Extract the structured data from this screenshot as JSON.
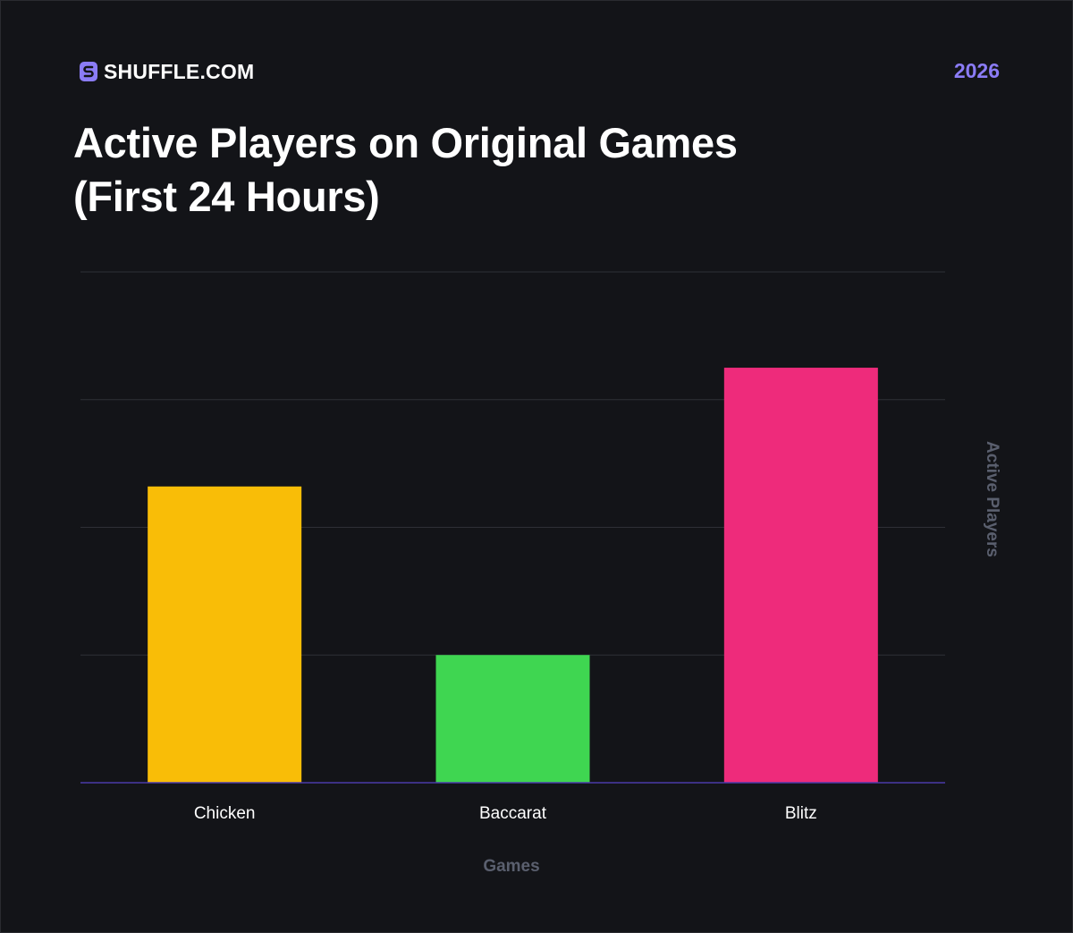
{
  "header": {
    "brand_name": "SHUFFLE.COM",
    "brand_icon": "shuffle-s-logo-icon",
    "year": "2026",
    "title_line1": "Active Players on Original Games",
    "title_line2": "(First 24 Hours)"
  },
  "colors": {
    "background": "#131418",
    "accent": "#8b7cf6",
    "grid": "#2e3036",
    "baseline": "#4b3aa8"
  },
  "chart_data": {
    "type": "bar",
    "title": "Active Players on Original Games (First 24 Hours)",
    "xlabel": "Games",
    "ylabel": "Active Players",
    "categories": [
      "Chicken",
      "Baccarat",
      "Blitz"
    ],
    "values": [
      2.32,
      1.0,
      3.25
    ],
    "colors": [
      "#f9bd07",
      "#3fd651",
      "#ee2b7b"
    ],
    "ylim": [
      0,
      4
    ],
    "grid": true,
    "y_tick_labels_shown": false
  }
}
